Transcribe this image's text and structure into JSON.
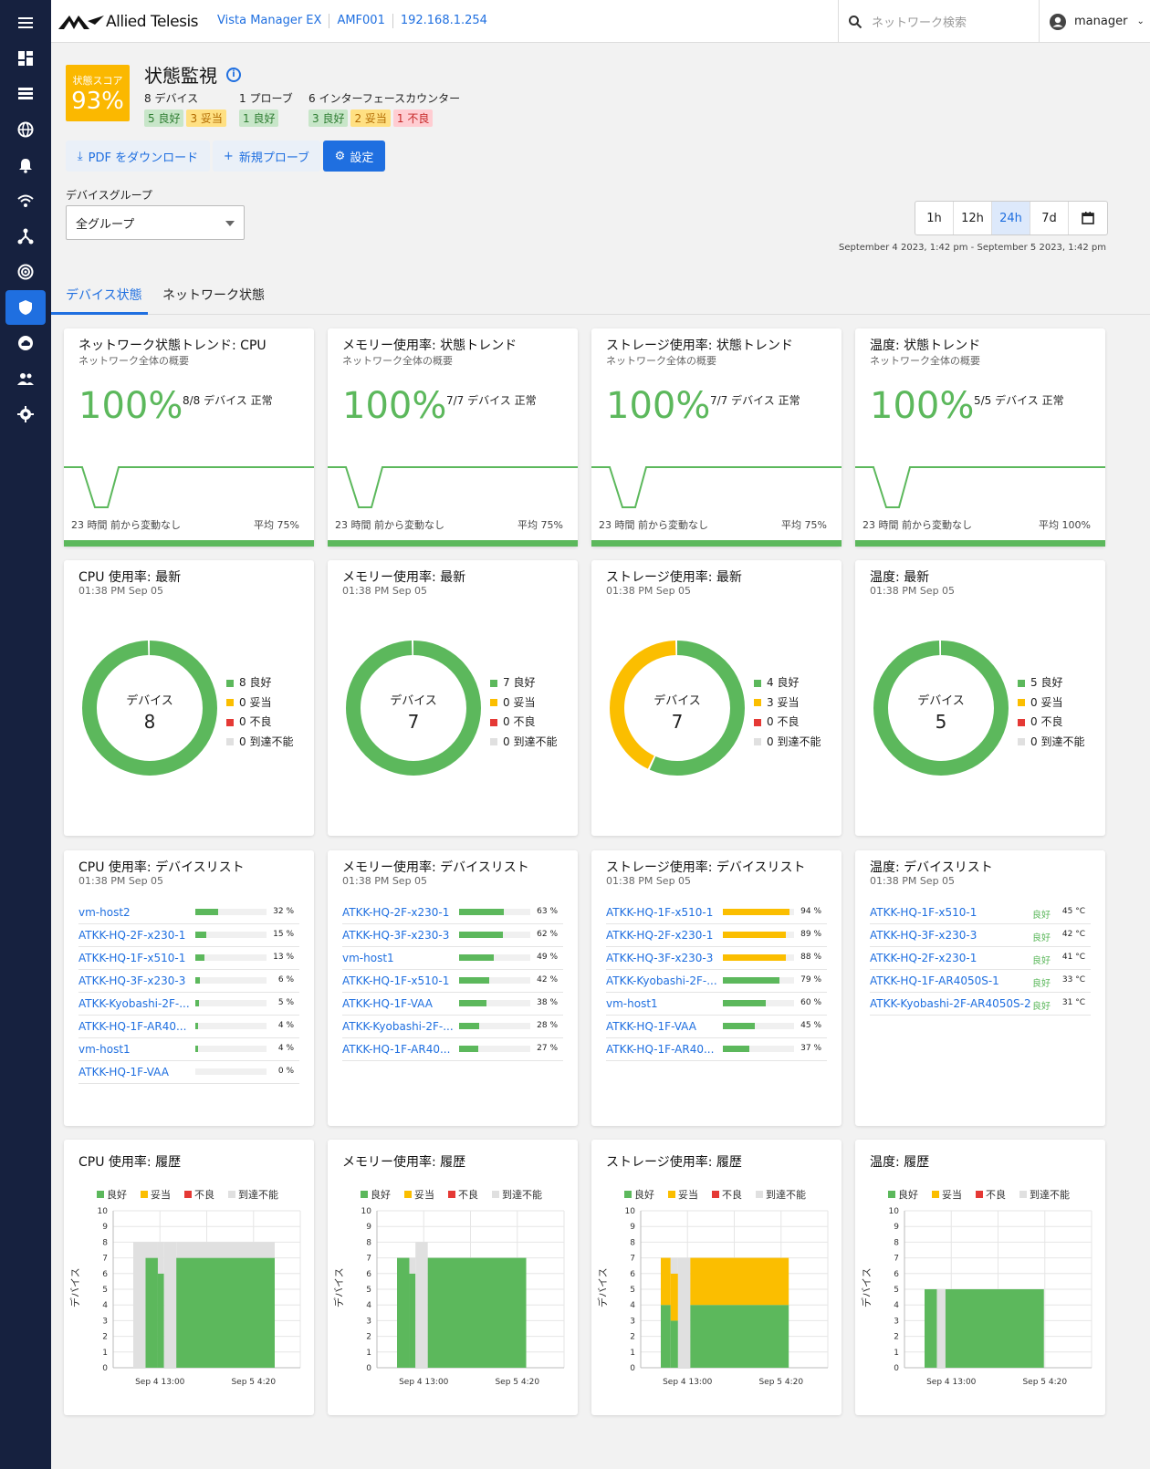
{
  "header": {
    "brand": "Allied Telesis",
    "crumbs": [
      "Vista Manager EX",
      "AMF001",
      "192.168.1.254"
    ],
    "search_placeholder": "ネットワーク検索",
    "user": "manager"
  },
  "sidebar": {
    "icons": [
      "menu-icon",
      "dashboard-icon",
      "list-icon",
      "globe-icon",
      "alarm-icon",
      "wifi-icon",
      "topology-icon",
      "radar-icon",
      "shield-icon",
      "cloud-icon",
      "users-icon",
      "settings-icon"
    ]
  },
  "page": {
    "score_label": "状態スコア",
    "score_value": "93%",
    "title": "状態監視",
    "stats": [
      {
        "label": "8 デバイス",
        "badges": [
          {
            "t": "5 良好",
            "c": "g"
          },
          {
            "t": "3 妥当",
            "c": "y"
          }
        ]
      },
      {
        "label": "1 プローブ",
        "badges": [
          {
            "t": "1 良好",
            "c": "g"
          }
        ]
      },
      {
        "label": "6 インターフェースカウンター",
        "badges": [
          {
            "t": "3 良好",
            "c": "g"
          },
          {
            "t": "2 妥当",
            "c": "y"
          },
          {
            "t": "1 不良",
            "c": "r"
          }
        ]
      }
    ],
    "buttons": {
      "pdf": "PDF をダウンロード",
      "probe": "新規プローブ",
      "settings": "設定"
    },
    "group_label": "デバイスグループ",
    "group_value": "全グループ",
    "ranges": [
      "1h",
      "12h",
      "24h",
      "7d"
    ],
    "active_range": "24h",
    "date_range": "September 4 2023, 1:42 pm - September 5 2023, 1:42 pm",
    "tabs": [
      "デバイス状態",
      "ネットワーク状態"
    ]
  },
  "trend_cards": [
    {
      "title": "ネットワーク状態トレンド: CPU",
      "sub": "ネットワーク全体の概要",
      "pct": "100%",
      "dev": "8/8 デバイス 正常",
      "foot": "23 時間 前から変動なし",
      "avg": "平均 75%"
    },
    {
      "title": "メモリー使用率: 状態トレンド",
      "sub": "ネットワーク全体の概要",
      "pct": "100%",
      "dev": "7/7 デバイス 正常",
      "foot": "23 時間 前から変動なし",
      "avg": "平均 75%"
    },
    {
      "title": "ストレージ使用率: 状態トレンド",
      "sub": "ネットワーク全体の概要",
      "pct": "100%",
      "dev": "7/7 デバイス 正常",
      "foot": "23 時間 前から変動なし",
      "avg": "平均 75%"
    },
    {
      "title": "温度: 状態トレンド",
      "sub": "ネットワーク全体の概要",
      "pct": "100%",
      "dev": "5/5 デバイス 正常",
      "foot": "23 時間 前から変動なし",
      "avg": "平均 100%"
    }
  ],
  "donut_cards": [
    {
      "title": "CPU 使用率: 最新",
      "sub": "01:38 PM Sep 05",
      "center": "デバイス",
      "total": "8",
      "good": 8,
      "fair": 0,
      "bad": 0,
      "unr": 0,
      "leg": [
        "8 良好",
        "0 妥当",
        "0 不良",
        "0 到達不能"
      ]
    },
    {
      "title": "メモリー使用率: 最新",
      "sub": "01:38 PM Sep 05",
      "center": "デバイス",
      "total": "7",
      "good": 7,
      "fair": 0,
      "bad": 0,
      "unr": 0,
      "leg": [
        "7 良好",
        "0 妥当",
        "0 不良",
        "0 到達不能"
      ]
    },
    {
      "title": "ストレージ使用率: 最新",
      "sub": "01:38 PM Sep 05",
      "center": "デバイス",
      "total": "7",
      "good": 4,
      "fair": 3,
      "bad": 0,
      "unr": 0,
      "leg": [
        "4 良好",
        "3 妥当",
        "0 不良",
        "0 到達不能"
      ]
    },
    {
      "title": "温度: 最新",
      "sub": "01:38 PM Sep 05",
      "center": "デバイス",
      "total": "5",
      "good": 5,
      "fair": 0,
      "bad": 0,
      "unr": 0,
      "leg": [
        "5 良好",
        "0 妥当",
        "0 不良",
        "0 到達不能"
      ]
    }
  ],
  "list_cards": [
    {
      "title": "CPU 使用率: デバイスリスト",
      "sub": "01:38 PM Sep 05",
      "color": "#5cb85c",
      "rows": [
        {
          "n": "vm-host2",
          "v": 32,
          "t": "32 %"
        },
        {
          "n": "ATKK-HQ-2F-x230-1",
          "v": 15,
          "t": "15 %"
        },
        {
          "n": "ATKK-HQ-1F-x510-1",
          "v": 13,
          "t": "13 %"
        },
        {
          "n": "ATKK-HQ-3F-x230-3",
          "v": 6,
          "t": "6 %"
        },
        {
          "n": "ATKK-Kyobashi-2F-...",
          "v": 5,
          "t": "5 %"
        },
        {
          "n": "ATKK-HQ-1F-AR40...",
          "v": 4,
          "t": "4 %"
        },
        {
          "n": "vm-host1",
          "v": 4,
          "t": "4 %"
        },
        {
          "n": "ATKK-HQ-1F-VAA",
          "v": 0,
          "t": "0 %"
        }
      ]
    },
    {
      "title": "メモリー使用率: デバイスリスト",
      "sub": "01:38 PM Sep 05",
      "color": "#5cb85c",
      "rows": [
        {
          "n": "ATKK-HQ-2F-x230-1",
          "v": 63,
          "t": "63 %"
        },
        {
          "n": "ATKK-HQ-3F-x230-3",
          "v": 62,
          "t": "62 %"
        },
        {
          "n": "vm-host1",
          "v": 49,
          "t": "49 %"
        },
        {
          "n": "ATKK-HQ-1F-x510-1",
          "v": 42,
          "t": "42 %"
        },
        {
          "n": "ATKK-HQ-1F-VAA",
          "v": 38,
          "t": "38 %"
        },
        {
          "n": "ATKK-Kyobashi-2F-...",
          "v": 28,
          "t": "28 %"
        },
        {
          "n": "ATKK-HQ-1F-AR40...",
          "v": 27,
          "t": "27 %"
        }
      ]
    },
    {
      "title": "ストレージ使用率: デバイスリスト",
      "sub": "01:38 PM Sep 05",
      "color": "#5cb85c",
      "rows": [
        {
          "n": "ATKK-HQ-1F-x510-1",
          "v": 94,
          "t": "94 %",
          "y": 1
        },
        {
          "n": "ATKK-HQ-2F-x230-1",
          "v": 89,
          "t": "89 %",
          "y": 1
        },
        {
          "n": "ATKK-HQ-3F-x230-3",
          "v": 88,
          "t": "88 %",
          "y": 1
        },
        {
          "n": "ATKK-Kyobashi-2F-...",
          "v": 79,
          "t": "79 %"
        },
        {
          "n": "vm-host1",
          "v": 60,
          "t": "60 %"
        },
        {
          "n": "ATKK-HQ-1F-VAA",
          "v": 45,
          "t": "45 %"
        },
        {
          "n": "ATKK-HQ-1F-AR40...",
          "v": 37,
          "t": "37 %"
        }
      ]
    },
    {
      "title": "温度: デバイスリスト",
      "sub": "01:38 PM Sep 05",
      "temp": true,
      "rows": [
        {
          "n": "ATKK-HQ-1F-x510-1",
          "s": "良好",
          "t": "45 °C"
        },
        {
          "n": "ATKK-HQ-3F-x230-3",
          "s": "良好",
          "t": "42 °C"
        },
        {
          "n": "ATKK-HQ-2F-x230-1",
          "s": "良好",
          "t": "41 °C"
        },
        {
          "n": "ATKK-HQ-1F-AR4050S-1",
          "s": "良好",
          "t": "33 °C"
        },
        {
          "n": "ATKK-Kyobashi-2F-AR4050S-2",
          "s": "良好",
          "t": "31 °C"
        }
      ]
    }
  ],
  "history_cards": [
    {
      "title": "CPU 使用率: 履歴",
      "legend": [
        "良好",
        "妥当",
        "不良",
        "到達不能"
      ],
      "ylabel": "デバイス",
      "yticks": [
        "0",
        "1",
        "2",
        "3",
        "4",
        "5",
        "6",
        "7",
        "8",
        "9",
        "10"
      ],
      "xticks": [
        "Sep 4 13:00",
        "Sep 5 4:20"
      ],
      "kind": "cpu"
    },
    {
      "title": "メモリー使用率: 履歴",
      "legend": [
        "良好",
        "妥当",
        "不良",
        "到達不能"
      ],
      "ylabel": "デバイス",
      "yticks": [
        "0",
        "1",
        "2",
        "3",
        "4",
        "5",
        "6",
        "7",
        "8",
        "9",
        "10"
      ],
      "xticks": [
        "Sep 4 13:00",
        "Sep 5 4:20"
      ],
      "kind": "mem"
    },
    {
      "title": "ストレージ使用率: 履歴",
      "legend": [
        "良好",
        "妥当",
        "不良",
        "到達不能"
      ],
      "ylabel": "デバイス",
      "yticks": [
        "0",
        "1",
        "2",
        "3",
        "4",
        "5",
        "6",
        "7",
        "8",
        "9",
        "10"
      ],
      "xticks": [
        "Sep 4 13:00",
        "Sep 5 4:20"
      ],
      "kind": "sto"
    },
    {
      "title": "温度: 履歴",
      "legend": [
        "良好",
        "妥当",
        "不良",
        "到達不能"
      ],
      "ylabel": "デバイス",
      "yticks": [
        "0",
        "1",
        "2",
        "3",
        "4",
        "5",
        "6",
        "7",
        "8",
        "9",
        "10"
      ],
      "xticks": [
        "Sep 4 13:00",
        "Sep 5 4:20"
      ],
      "kind": "tmp"
    }
  ],
  "colors": {
    "good": "#5cb85c",
    "fair": "#fbbe00",
    "bad": "#e53935",
    "unreachable": "#e0e0e0",
    "accent": "#1f6fe0"
  }
}
